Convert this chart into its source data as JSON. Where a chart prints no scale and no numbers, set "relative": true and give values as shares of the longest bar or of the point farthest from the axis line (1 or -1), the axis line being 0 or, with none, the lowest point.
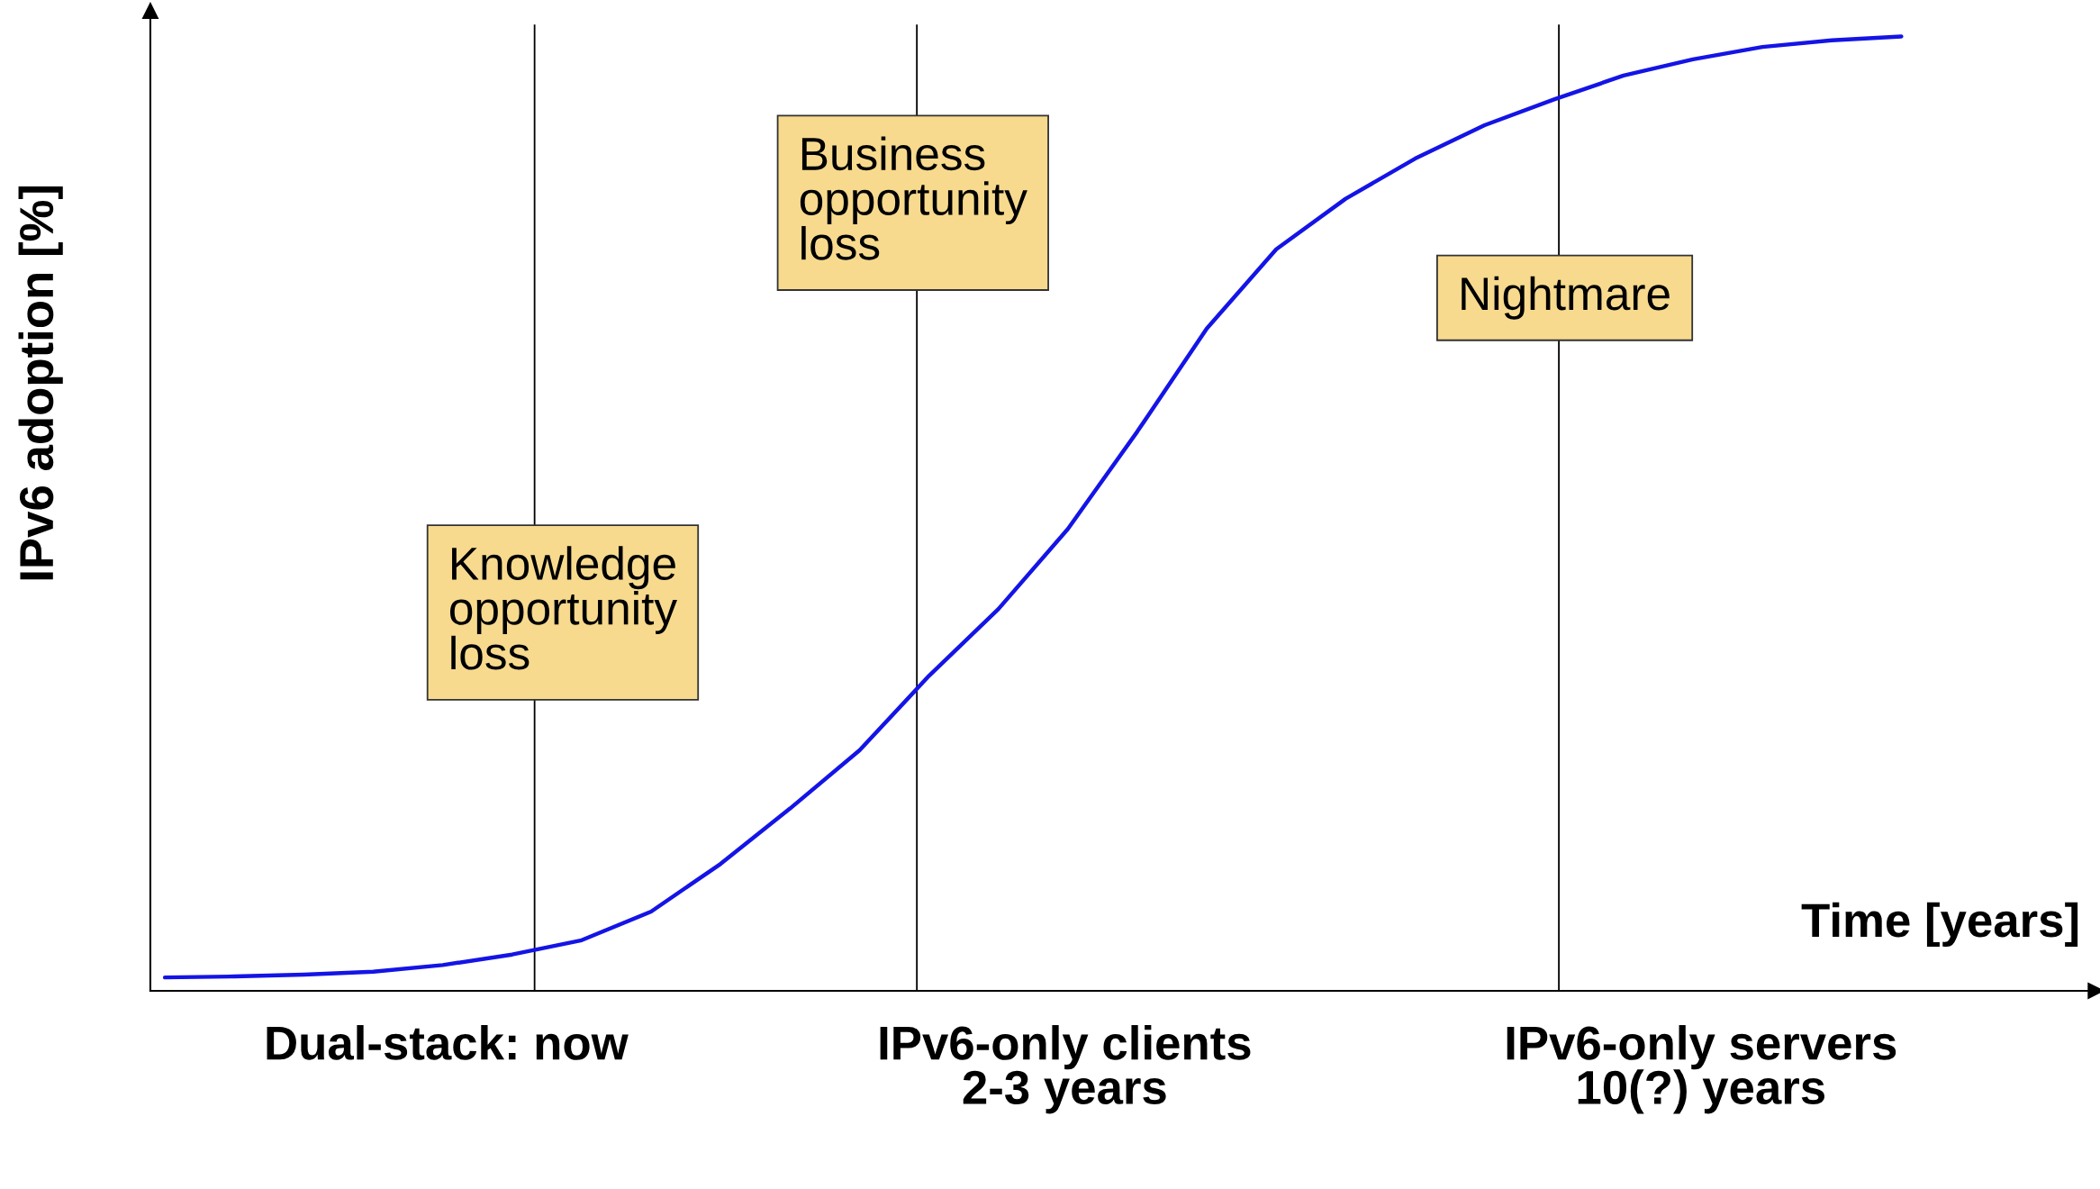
{
  "chart_data": {
    "type": "line",
    "relative": true,
    "xlabel": "Time [years]",
    "ylabel": "IPv6 adoption [%]",
    "marker": "none",
    "line_style": "solid",
    "categories": [
      null,
      null,
      null,
      null,
      null,
      null,
      null,
      null,
      null,
      null,
      null,
      null,
      null,
      null,
      null,
      null,
      null,
      null,
      null,
      null,
      null,
      null,
      null,
      null,
      null,
      null
    ],
    "series": [
      {
        "color": "#1414e6",
        "values": [
          0.014,
          0.015,
          0.017,
          0.02,
          0.027,
          0.038,
          0.053,
          0.083,
          0.133,
          0.191,
          0.252,
          0.33,
          0.4,
          0.484,
          0.586,
          0.694,
          0.777,
          0.83,
          0.872,
          0.907,
          0.934,
          0.959,
          0.976,
          0.989,
          0.996,
          1.0
        ]
      }
    ],
    "annotations": [
      "Knowledge\nopportunity\nloss",
      "Business\nopportunity\nloss",
      "Nightmare",
      "Dual-stack: now",
      "IPv6-only clients\n2-3 years",
      "IPv6-only servers\n10(?) years"
    ]
  }
}
